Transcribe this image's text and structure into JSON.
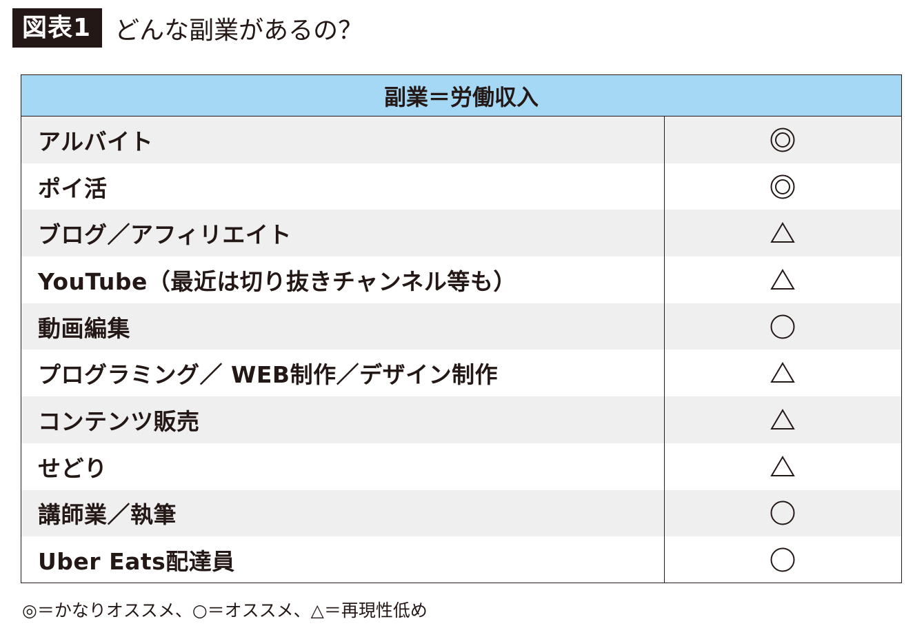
{
  "figure": {
    "badge": "図表1",
    "title": "どんな副業があるの？"
  },
  "table": {
    "header": "副業＝労働収入",
    "rows": [
      {
        "name": "アルバイト",
        "mark": "double-circle"
      },
      {
        "name": "ポイ活",
        "mark": "double-circle"
      },
      {
        "name": "ブログ／アフィリエイト",
        "mark": "triangle"
      },
      {
        "name": "YouTube（最近は切り抜きチャンネル等も）",
        "mark": "triangle"
      },
      {
        "name": "動画編集",
        "mark": "circle"
      },
      {
        "name": "プログラミング／ WEB制作／デザイン制作",
        "mark": "triangle"
      },
      {
        "name": "コンテンツ販売",
        "mark": "triangle"
      },
      {
        "name": "せどり",
        "mark": "triangle"
      },
      {
        "name": "講師業／執筆",
        "mark": "circle"
      },
      {
        "name": "Uber Eats配達員",
        "mark": "circle"
      }
    ]
  },
  "legend": {
    "text": "◎＝かなりオススメ、○＝オススメ、△＝再現性低め"
  },
  "colors": {
    "header_bg": "#a4d8f5",
    "shaded_row": "#efefef",
    "ink": "#231815"
  }
}
